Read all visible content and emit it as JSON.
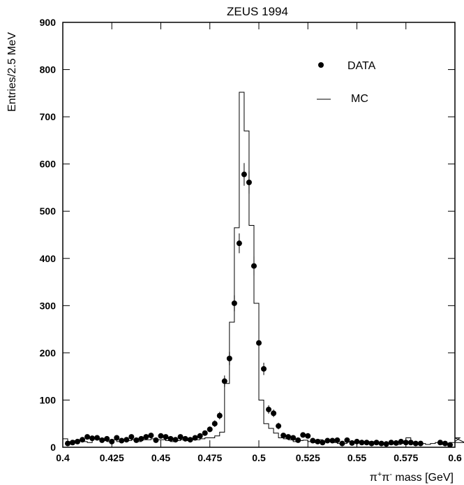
{
  "chart_data": {
    "type": "scatter",
    "title": "ZEUS 1994",
    "xlabel": {
      "pi": "π",
      "plus": "+",
      "minus": "-",
      "rest": " mass [GeV]"
    },
    "ylabel": "Entries/2.5 MeV",
    "xlim": [
      0.4,
      0.6
    ],
    "ylim": [
      0,
      900
    ],
    "xticks": [
      0.4,
      0.425,
      0.45,
      0.475,
      0.5,
      0.525,
      0.55,
      0.575,
      0.6
    ],
    "xtick_labels": [
      "0.4",
      "0.425",
      "0.45",
      "0.475",
      "0.5",
      "0.525",
      "0.55",
      "0.575",
      "0.6"
    ],
    "yticks": [
      0,
      100,
      200,
      300,
      400,
      500,
      600,
      700,
      800,
      900
    ],
    "ytick_labels": [
      "0",
      "100",
      "200",
      "300",
      "400",
      "500",
      "600",
      "700",
      "800",
      "900"
    ],
    "grid": false,
    "legend_placement": "top-right",
    "series": [
      {
        "name": "DATA",
        "kind": "points-with-error-bars",
        "x": [
          0.4025,
          0.405,
          0.4075,
          0.41,
          0.4125,
          0.415,
          0.4175,
          0.42,
          0.4225,
          0.425,
          0.4275,
          0.43,
          0.4325,
          0.435,
          0.4375,
          0.44,
          0.4425,
          0.445,
          0.4475,
          0.45,
          0.4525,
          0.455,
          0.4575,
          0.46,
          0.4625,
          0.465,
          0.4675,
          0.47,
          0.4725,
          0.475,
          0.4775,
          0.48,
          0.4825,
          0.485,
          0.4875,
          0.49,
          0.4925,
          0.495,
          0.4975,
          0.5,
          0.5025,
          0.505,
          0.5075,
          0.51,
          0.5125,
          0.515,
          0.5175,
          0.52,
          0.5225,
          0.525,
          0.5275,
          0.53,
          0.5325,
          0.535,
          0.5375,
          0.54,
          0.5425,
          0.545,
          0.5475,
          0.55,
          0.5525,
          0.555,
          0.5575,
          0.56,
          0.5625,
          0.565,
          0.5675,
          0.57,
          0.5725,
          0.575,
          0.5775,
          0.58,
          0.5825,
          0.5925,
          0.595,
          0.5975
        ],
        "y": [
          8,
          10,
          12,
          16,
          22,
          19,
          20,
          15,
          18,
          12,
          20,
          14,
          16,
          22,
          15,
          18,
          22,
          25,
          15,
          24,
          22,
          18,
          16,
          22,
          18,
          16,
          20,
          24,
          30,
          38,
          50,
          67,
          140,
          188,
          305,
          432,
          578,
          561,
          384,
          221,
          166,
          80,
          72,
          45,
          25,
          22,
          20,
          15,
          26,
          24,
          14,
          12,
          10,
          14,
          14,
          15,
          8,
          15,
          9,
          12,
          10,
          10,
          8,
          10,
          8,
          7,
          10,
          9,
          12,
          10,
          10,
          8,
          8,
          10,
          8,
          5
        ],
        "err": [
          3,
          3,
          3,
          4,
          5,
          4,
          4,
          4,
          4,
          3,
          4,
          4,
          4,
          5,
          4,
          4,
          5,
          5,
          4,
          5,
          5,
          4,
          4,
          5,
          4,
          4,
          4,
          5,
          5,
          6,
          7,
          8,
          12,
          14,
          17,
          21,
          24,
          24,
          20,
          15,
          13,
          9,
          8,
          7,
          5,
          5,
          4,
          4,
          5,
          5,
          4,
          3,
          3,
          4,
          4,
          4,
          3,
          4,
          3,
          3,
          3,
          3,
          3,
          3,
          3,
          3,
          3,
          3,
          3,
          3,
          3,
          3,
          3,
          3,
          3,
          2
        ]
      },
      {
        "name": "MC",
        "kind": "histogram",
        "bin_edges_start": 0.4,
        "bin_width": 0.0025,
        "values": [
          18,
          12,
          14,
          16,
          12,
          10,
          18,
          18,
          14,
          12,
          16,
          12,
          16,
          14,
          16,
          12,
          16,
          16,
          18,
          16,
          16,
          14,
          12,
          14,
          16,
          14,
          16,
          16,
          18,
          20,
          20,
          24,
          32,
          135,
          265,
          465,
          752,
          670,
          470,
          305,
          100,
          50,
          40,
          30,
          20,
          18,
          16,
          12,
          14,
          15,
          12,
          10,
          16,
          12,
          12,
          10,
          8,
          8,
          12,
          12,
          12,
          10,
          12,
          12,
          10,
          10,
          8,
          8,
          6,
          8,
          20,
          10,
          10,
          8,
          6,
          8,
          10,
          6,
          6,
          10,
          12,
          20,
          10
        ]
      }
    ]
  }
}
